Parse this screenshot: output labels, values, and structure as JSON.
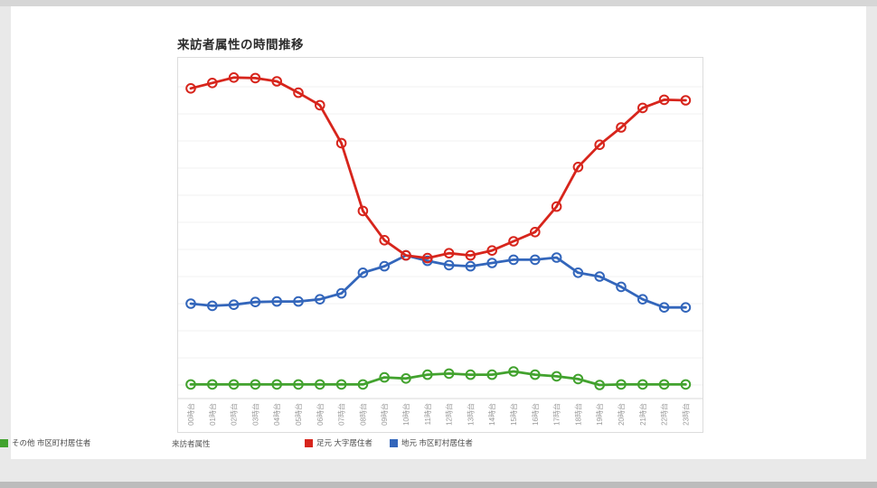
{
  "page": {
    "title": "来訪者属性の時間推移"
  },
  "legend": {
    "title": "来訪者属性"
  },
  "chart_data": {
    "type": "line",
    "title": "来訪者属性の時間推移",
    "categories": [
      "00時台",
      "01時台",
      "02時台",
      "03時台",
      "04時台",
      "05時台",
      "06時台",
      "07時台",
      "08時台",
      "09時台",
      "10時台",
      "11時台",
      "12時台",
      "13時台",
      "14時台",
      "15時台",
      "16時台",
      "17時台",
      "18時台",
      "19時台",
      "20時台",
      "21時台",
      "22時台",
      "23時台"
    ],
    "series": [
      {
        "name": "足元 大字居住者",
        "color": "#d7251c",
        "values": [
          57.2,
          58.2,
          59.2,
          59.1,
          58.5,
          56.4,
          54.1,
          47.1,
          34.6,
          29.2,
          26.4,
          25.9,
          26.8,
          26.4,
          27.3,
          29.0,
          30.7,
          35.4,
          42.7,
          46.8,
          50.0,
          53.6,
          55.1,
          55.0
        ]
      },
      {
        "name": "地元 市区町村居住者",
        "color": "#3366bb",
        "values": [
          17.5,
          17.1,
          17.3,
          17.8,
          17.9,
          17.9,
          18.3,
          19.4,
          23.2,
          24.4,
          26.4,
          25.4,
          24.6,
          24.4,
          25.0,
          25.6,
          25.6,
          26.0,
          23.2,
          22.5,
          20.6,
          18.3,
          16.8,
          16.8
        ]
      },
      {
        "name": "その他 市区町村居住者",
        "color": "#42a22e",
        "values": [
          2.6,
          2.6,
          2.6,
          2.6,
          2.6,
          2.6,
          2.6,
          2.6,
          2.6,
          3.9,
          3.7,
          4.4,
          4.6,
          4.4,
          4.4,
          5.0,
          4.4,
          4.1,
          3.6,
          2.5,
          2.6,
          2.6,
          2.6,
          2.6
        ]
      }
    ],
    "xlabel": "",
    "ylabel": "",
    "ylim": [
      0,
      62.5
    ],
    "y_axis_labels_visible": false,
    "grid": true,
    "marker": "open-circle",
    "legend_position": "bottom-left"
  }
}
